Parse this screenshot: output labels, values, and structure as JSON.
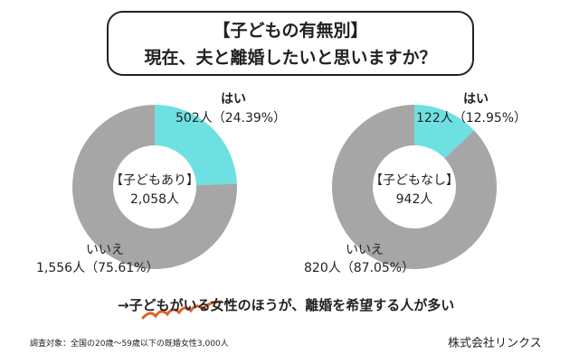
{
  "title": {
    "line1": "【子どもの有無別】",
    "line2": "現在、夫と離婚したいと思いますか？"
  },
  "chart_data": [
    {
      "type": "pie",
      "donut": true,
      "center_label": "【子どもあり】",
      "center_value": "2,058人",
      "slices": [
        {
          "name": "はい",
          "count_label": "502人（24.39%）",
          "value": 24.39,
          "color": "#6fe0e2"
        },
        {
          "name": "いいえ",
          "count_label": "1,556人（75.61%）",
          "value": 75.61,
          "color": "#a6a6a6"
        }
      ]
    },
    {
      "type": "pie",
      "donut": true,
      "center_label": "【子どもなし】",
      "center_value": "942人",
      "slices": [
        {
          "name": "はい",
          "count_label": "122人（12.95%）",
          "value": 12.95,
          "color": "#6fe0e2"
        },
        {
          "name": "いいえ",
          "count_label": "820人（87.05%）",
          "value": 87.05,
          "color": "#a6a6a6"
        }
      ]
    }
  ],
  "conclusion": "→子どもがいる女性のほうが、離婚を希望する人が多い",
  "accent_color": "#e0632a",
  "footnote": "調査対象：全国の20歳〜59歳以下の既婚女性3,000人",
  "company": "株式会社リンクス"
}
